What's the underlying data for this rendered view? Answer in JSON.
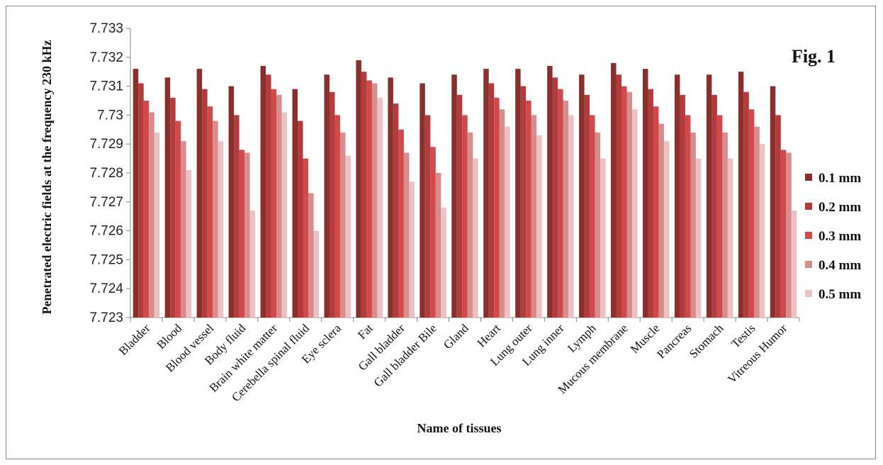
{
  "chart_data": {
    "type": "bar",
    "title": "",
    "annotation": "Fig. 1",
    "xlabel": "Name of tissues",
    "ylabel": "Penetrated electric fields at the frequency 230 kHz",
    "ylim": [
      7.723,
      7.733
    ],
    "yticks": [
      "7.723",
      "7.724",
      "7.725",
      "7.726",
      "7.727",
      "7.728",
      "7.729",
      "7.73",
      "7.731",
      "7.732",
      "7.733"
    ],
    "legend_position": "right",
    "grid": false,
    "categories": [
      "Bladder",
      "Blood",
      "Blood vessel",
      "Body fluid",
      "Brain white matter",
      "Cerebella spinal fluid",
      "Eye sclera",
      "Fat",
      "Gall bladder",
      "Gall bladder Bile",
      "Gland",
      "Heart",
      "Lung outer",
      "Lung inner",
      "Lymph",
      "Mucous membrane",
      "Muscle",
      "Pancreas",
      "Stomach",
      "Testis",
      "Vitreous Humor"
    ],
    "series": [
      {
        "name": "0.1 mm",
        "color": "#8b2e2e",
        "values": [
          7.7316,
          7.7313,
          7.7316,
          7.731,
          7.7317,
          7.7309,
          7.7314,
          7.7319,
          7.7313,
          7.7311,
          7.7314,
          7.7316,
          7.7316,
          7.7317,
          7.7314,
          7.7318,
          7.7316,
          7.7314,
          7.7314,
          7.7315,
          7.731
        ]
      },
      {
        "name": "0.2 mm",
        "color": "#b23b3b",
        "values": [
          7.7311,
          7.7306,
          7.7309,
          7.73,
          7.7314,
          7.7298,
          7.7308,
          7.7315,
          7.7304,
          7.73,
          7.7307,
          7.7311,
          7.731,
          7.7313,
          7.7307,
          7.7314,
          7.7309,
          7.7307,
          7.7307,
          7.7308,
          7.73
        ]
      },
      {
        "name": "0.3 mm",
        "color": "#cf4a4a",
        "values": [
          7.7305,
          7.7298,
          7.7303,
          7.7288,
          7.7309,
          7.7285,
          7.73,
          7.7312,
          7.7295,
          7.7289,
          7.73,
          7.7306,
          7.7305,
          7.7309,
          7.73,
          7.731,
          7.7303,
          7.73,
          7.73,
          7.7302,
          7.7288
        ]
      },
      {
        "name": "0.4 mm",
        "color": "#d98c8c",
        "values": [
          7.7301,
          7.7291,
          7.7298,
          7.7287,
          7.7307,
          7.7273,
          7.7294,
          7.7311,
          7.7287,
          7.728,
          7.7294,
          7.7302,
          7.73,
          7.7305,
          7.7294,
          7.7308,
          7.7297,
          7.7294,
          7.7294,
          7.7296,
          7.7287
        ]
      },
      {
        "name": "0.5 mm",
        "color": "#ebc2c2",
        "values": [
          7.7294,
          7.7281,
          7.7291,
          7.7267,
          7.7301,
          7.726,
          7.7286,
          7.7306,
          7.7277,
          7.7268,
          7.7285,
          7.7296,
          7.7293,
          7.73,
          7.7285,
          7.7302,
          7.7291,
          7.7285,
          7.7285,
          7.729,
          7.7267
        ]
      }
    ]
  }
}
